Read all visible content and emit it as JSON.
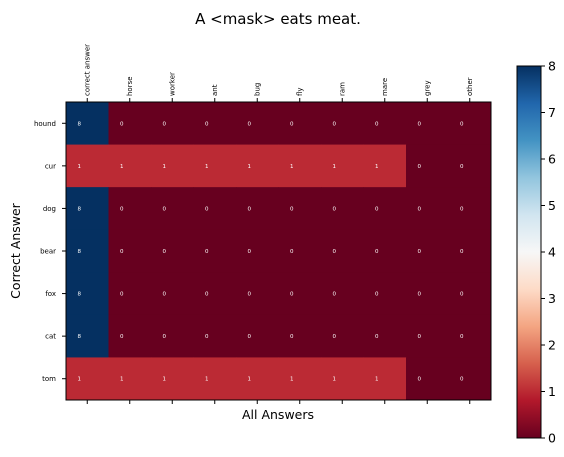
{
  "chart_data": {
    "type": "heatmap",
    "title": "A <mask> eats meat.",
    "xlabel": "All Answers",
    "ylabel": "Correct Answer",
    "x_categories": [
      "correct answer",
      "horse",
      "worker",
      "ant",
      "bug",
      "fly",
      "ram",
      "mare",
      "grey",
      "other"
    ],
    "y_categories": [
      "hound",
      "cur",
      "dog",
      "bear",
      "fox",
      "cat",
      "tom"
    ],
    "values": [
      [
        8,
        0,
        0,
        0,
        0,
        0,
        0,
        0,
        0,
        0
      ],
      [
        1,
        1,
        1,
        1,
        1,
        1,
        1,
        1,
        0,
        0
      ],
      [
        8,
        0,
        0,
        0,
        0,
        0,
        0,
        0,
        0,
        0
      ],
      [
        8,
        0,
        0,
        0,
        0,
        0,
        0,
        0,
        0,
        0
      ],
      [
        8,
        0,
        0,
        0,
        0,
        0,
        0,
        0,
        0,
        0
      ],
      [
        8,
        0,
        0,
        0,
        0,
        0,
        0,
        0,
        0,
        0
      ],
      [
        1,
        1,
        1,
        1,
        1,
        1,
        1,
        1,
        0,
        0
      ]
    ],
    "colormap": "RdBu",
    "vmin": 0,
    "vmax": 8,
    "colorbar_ticks": [
      0,
      1,
      2,
      3,
      4,
      5,
      6,
      7,
      8
    ]
  }
}
